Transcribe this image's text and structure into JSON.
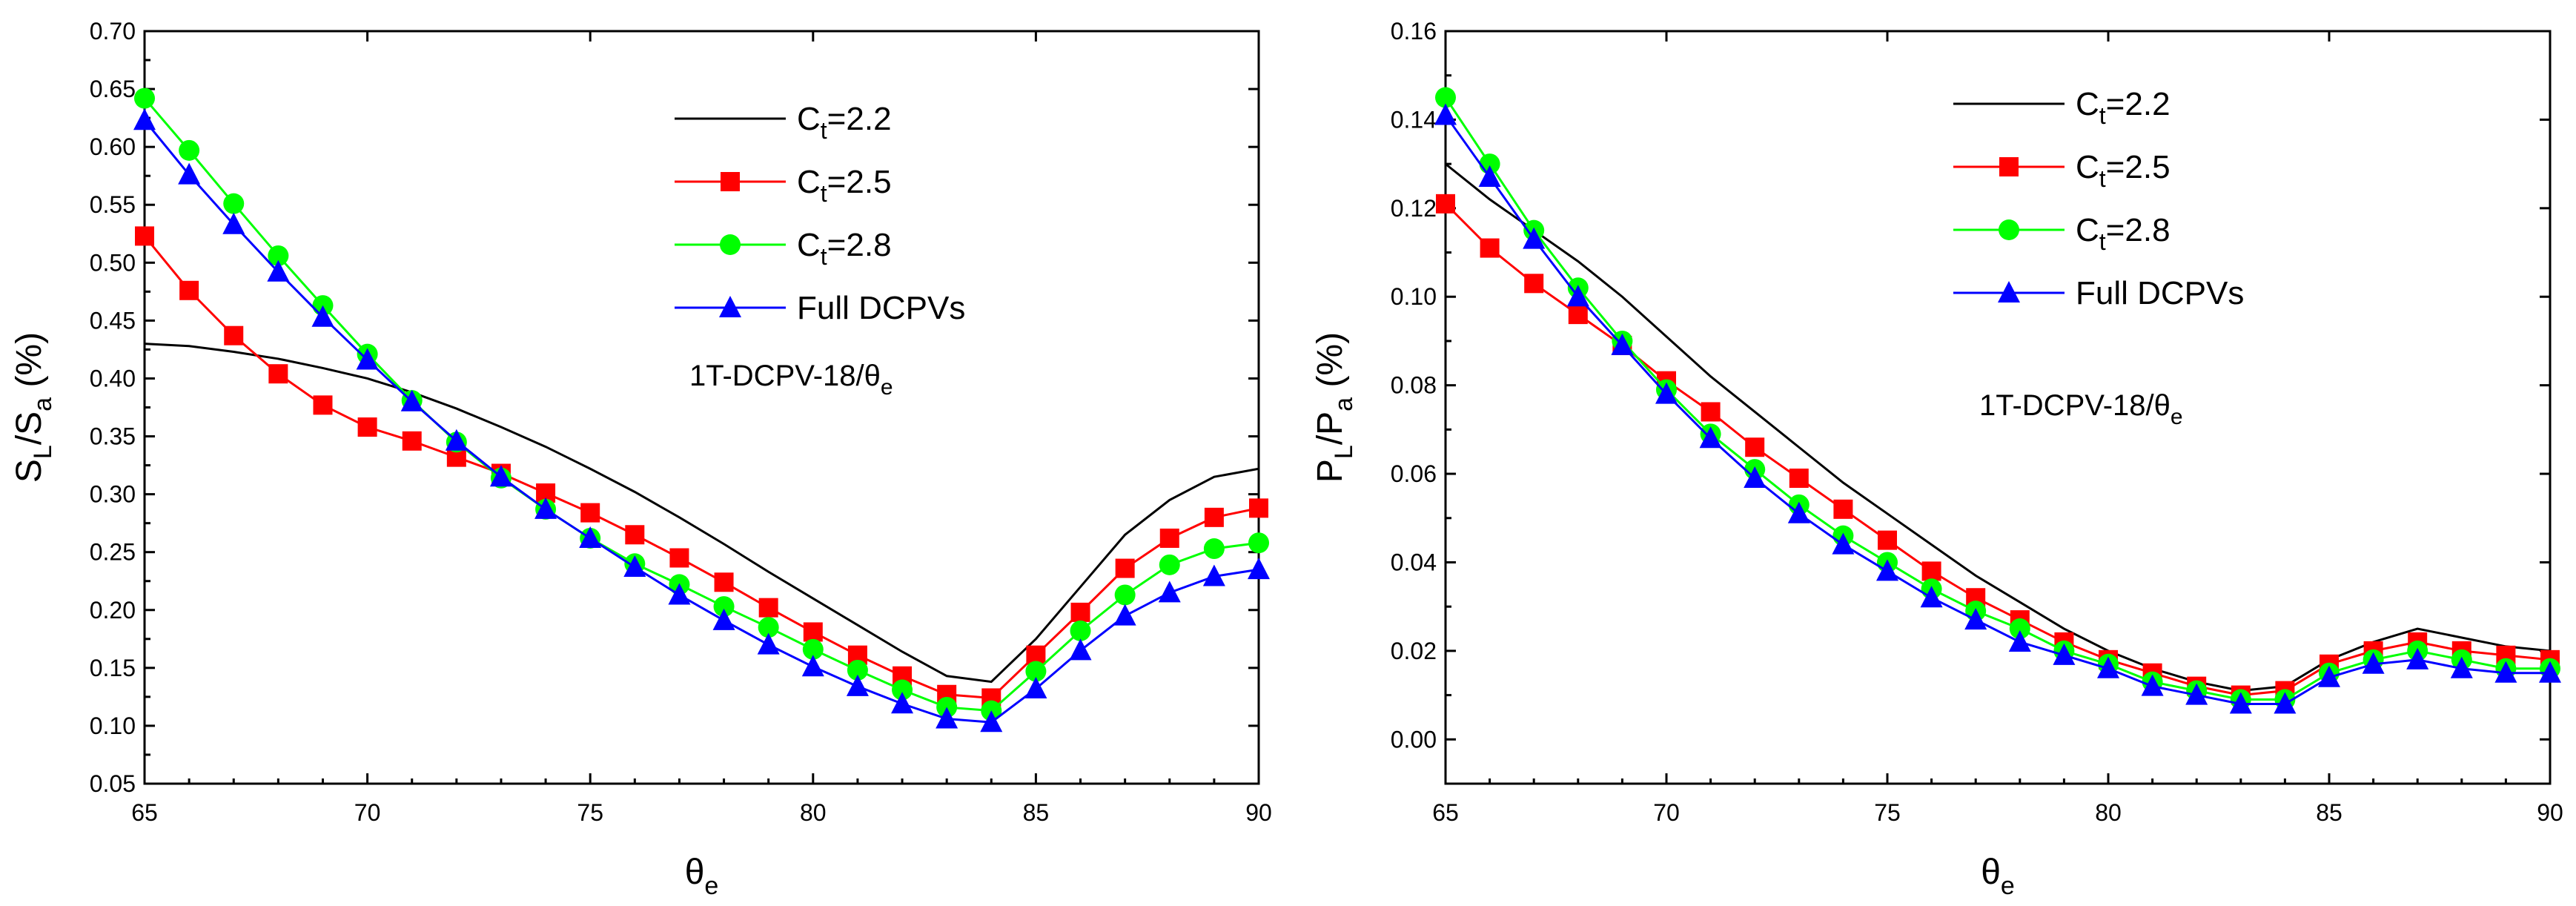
{
  "chart_data": [
    {
      "type": "line",
      "xlabel": "θe",
      "xlabel_main": "θ",
      "xlabel_sub": "e",
      "ylabel_parts": [
        {
          "text": "S",
          "sub": false
        },
        {
          "text": "L",
          "sub": true
        },
        {
          "text": "/S",
          "sub": false
        },
        {
          "text": "a",
          "sub": true
        },
        {
          "text": " (%)",
          "sub": false
        }
      ],
      "xlim": [
        65,
        90
      ],
      "ylim": [
        0.05,
        0.7
      ],
      "xticks": [
        65,
        70,
        75,
        80,
        85,
        90
      ],
      "xtick_labels": [
        "65",
        "70",
        "75",
        "80",
        "85",
        "90"
      ],
      "yticks": [
        0.05,
        0.1,
        0.15,
        0.2,
        0.25,
        0.3,
        0.35,
        0.4,
        0.45,
        0.5,
        0.55,
        0.6,
        0.65,
        0.7
      ],
      "ytick_labels": [
        "0.05",
        "0.10",
        "0.15",
        "0.20",
        "0.25",
        "0.30",
        "0.35",
        "0.40",
        "0.45",
        "0.50",
        "0.55",
        "0.60",
        "0.65",
        "0.70"
      ],
      "annotation": {
        "main": "1T-DCPV-18/θ",
        "sub": "e"
      },
      "legend_position": "top-right",
      "x": [
        65,
        66,
        67,
        68,
        69,
        70,
        71,
        72,
        73,
        74,
        75,
        76,
        77,
        78,
        79,
        80,
        81,
        82,
        83,
        84,
        85,
        86,
        87,
        88,
        89,
        90
      ],
      "series": [
        {
          "name": "Ct=2.2",
          "label_main": "C",
          "label_sub": "t",
          "label_rest": "=2.2",
          "color": "#000000",
          "marker": "none",
          "values": [
            0.43,
            0.428,
            0.423,
            0.417,
            0.409,
            0.4,
            0.388,
            0.374,
            0.358,
            0.341,
            0.322,
            0.302,
            0.28,
            0.257,
            0.233,
            0.21,
            0.187,
            0.164,
            0.143,
            0.138,
            0.175,
            0.22,
            0.265,
            0.295,
            0.315,
            0.322
          ]
        },
        {
          "name": "Ct=2.5",
          "label_main": "C",
          "label_sub": "t",
          "label_rest": "=2.5",
          "color": "#ff0000",
          "marker": "square",
          "values": [
            0.523,
            0.476,
            0.437,
            0.404,
            0.377,
            0.358,
            0.346,
            0.332,
            0.318,
            0.301,
            0.284,
            0.265,
            0.245,
            0.224,
            0.202,
            0.181,
            0.161,
            0.143,
            0.127,
            0.124,
            0.161,
            0.198,
            0.236,
            0.262,
            0.28,
            0.288
          ]
        },
        {
          "name": "Ct=2.8",
          "label_main": "C",
          "label_sub": "t",
          "label_rest": "=2.8",
          "color": "#00ff00",
          "marker": "circle",
          "values": [
            0.642,
            0.597,
            0.551,
            0.506,
            0.463,
            0.421,
            0.381,
            0.345,
            0.314,
            0.287,
            0.262,
            0.24,
            0.222,
            0.203,
            0.185,
            0.166,
            0.148,
            0.131,
            0.116,
            0.113,
            0.147,
            0.182,
            0.213,
            0.239,
            0.253,
            0.258
          ]
        },
        {
          "name": "Full DCPVs",
          "label_main": "Full DCPVs",
          "label_sub": "",
          "label_rest": "",
          "color": "#0000ff",
          "marker": "triangle",
          "values": [
            0.623,
            0.576,
            0.533,
            0.492,
            0.453,
            0.416,
            0.38,
            0.346,
            0.315,
            0.287,
            0.262,
            0.237,
            0.213,
            0.191,
            0.17,
            0.151,
            0.134,
            0.119,
            0.106,
            0.103,
            0.132,
            0.165,
            0.195,
            0.215,
            0.229,
            0.235
          ]
        }
      ]
    },
    {
      "type": "line",
      "xlabel": "θe",
      "xlabel_main": "θ",
      "xlabel_sub": "e",
      "ylabel_parts": [
        {
          "text": "P",
          "sub": false
        },
        {
          "text": "L",
          "sub": true
        },
        {
          "text": "/P",
          "sub": false
        },
        {
          "text": "a",
          "sub": true
        },
        {
          "text": " (%)",
          "sub": false
        }
      ],
      "xlim": [
        65,
        90
      ],
      "ylim": [
        -0.01,
        0.16
      ],
      "xticks": [
        65,
        70,
        75,
        80,
        85,
        90
      ],
      "xtick_labels": [
        "65",
        "70",
        "75",
        "80",
        "85",
        "90"
      ],
      "yticks": [
        0.0,
        0.02,
        0.04,
        0.06,
        0.08,
        0.1,
        0.12,
        0.14,
        0.16
      ],
      "ytick_labels": [
        "0.00",
        "0.02",
        "0.04",
        "0.06",
        "0.08",
        "0.10",
        "0.12",
        "0.14",
        "0.16"
      ],
      "annotation": {
        "main": "1T-DCPV-18/θ",
        "sub": "e"
      },
      "legend_position": "top-right",
      "x": [
        65,
        66,
        67,
        68,
        69,
        70,
        71,
        72,
        73,
        74,
        75,
        76,
        77,
        78,
        79,
        80,
        81,
        82,
        83,
        84,
        85,
        86,
        87,
        88,
        89,
        90
      ],
      "series": [
        {
          "name": "Ct=2.2",
          "label_main": "C",
          "label_sub": "t",
          "label_rest": "=2.2",
          "color": "#000000",
          "marker": "none",
          "values": [
            0.13,
            0.122,
            0.115,
            0.108,
            0.1,
            0.091,
            0.082,
            0.074,
            0.066,
            0.058,
            0.051,
            0.044,
            0.037,
            0.031,
            0.025,
            0.02,
            0.016,
            0.013,
            0.011,
            0.012,
            0.018,
            0.022,
            0.025,
            0.023,
            0.021,
            0.02
          ]
        },
        {
          "name": "Ct=2.5",
          "label_main": "C",
          "label_sub": "t",
          "label_rest": "=2.5",
          "color": "#ff0000",
          "marker": "square",
          "values": [
            0.121,
            0.111,
            0.103,
            0.096,
            0.089,
            0.081,
            0.074,
            0.066,
            0.059,
            0.052,
            0.045,
            0.038,
            0.032,
            0.027,
            0.022,
            0.018,
            0.015,
            0.012,
            0.01,
            0.011,
            0.017,
            0.02,
            0.022,
            0.02,
            0.019,
            0.018
          ]
        },
        {
          "name": "Ct=2.8",
          "label_main": "C",
          "label_sub": "t",
          "label_rest": "=2.8",
          "color": "#00ff00",
          "marker": "circle",
          "values": [
            0.145,
            0.13,
            0.115,
            0.102,
            0.09,
            0.079,
            0.069,
            0.061,
            0.053,
            0.046,
            0.04,
            0.034,
            0.029,
            0.025,
            0.02,
            0.017,
            0.013,
            0.011,
            0.009,
            0.009,
            0.015,
            0.018,
            0.02,
            0.018,
            0.016,
            0.016
          ]
        },
        {
          "name": "Full DCPVs",
          "label_main": "Full DCPVs",
          "label_sub": "",
          "label_rest": "",
          "color": "#0000ff",
          "marker": "triangle",
          "values": [
            0.141,
            0.127,
            0.113,
            0.1,
            0.089,
            0.078,
            0.068,
            0.059,
            0.051,
            0.044,
            0.038,
            0.032,
            0.027,
            0.022,
            0.019,
            0.016,
            0.012,
            0.01,
            0.008,
            0.008,
            0.014,
            0.017,
            0.018,
            0.016,
            0.015,
            0.015
          ]
        }
      ]
    }
  ]
}
